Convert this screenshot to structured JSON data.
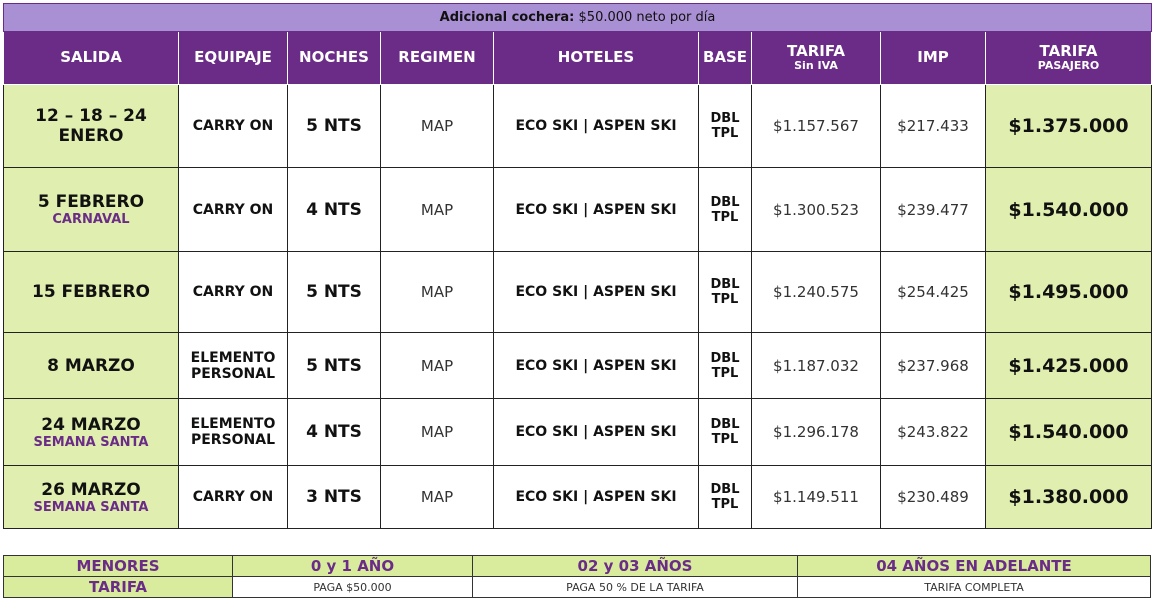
{
  "banner": {
    "label": "Adicional cochera:",
    "text": "$50.000 neto por día"
  },
  "table": {
    "headers": [
      {
        "title": "SALIDA"
      },
      {
        "title": "EQUIPAJE"
      },
      {
        "title": "NOCHES"
      },
      {
        "title": "REGIMEN"
      },
      {
        "title": "HOTELES"
      },
      {
        "title": "BASE"
      },
      {
        "title": "TARIFA",
        "subtitle": "Sin IVA"
      },
      {
        "title": "IMP"
      },
      {
        "title": "TARIFA",
        "subtitle": "PASAJERO"
      }
    ],
    "rows": [
      {
        "salida": [
          "12 – 18 – 24",
          "ENERO"
        ],
        "equipaje": [
          "CARRY ON"
        ],
        "noches": "5 NTS",
        "regimen": "MAP",
        "hoteles": "ECO SKI | ASPEN SKI",
        "base": [
          "DBL",
          "TPL"
        ],
        "tarifa": "$1.157.567",
        "imp": "$217.433",
        "pasajero": "$1.375.000"
      },
      {
        "salida": [
          "5 FEBRERO"
        ],
        "nota": "CARNAVAL",
        "equipaje": [
          "CARRY ON"
        ],
        "noches": "4 NTS",
        "regimen": "MAP",
        "hoteles": "ECO SKI | ASPEN SKI",
        "base": [
          "DBL",
          "TPL"
        ],
        "tarifa": "$1.300.523",
        "imp": "$239.477",
        "pasajero": "$1.540.000"
      },
      {
        "salida": [
          "15 FEBRERO"
        ],
        "equipaje": [
          "CARRY ON"
        ],
        "noches": "5 NTS",
        "regimen": "MAP",
        "hoteles": "ECO SKI | ASPEN SKI",
        "base": [
          "DBL",
          "TPL"
        ],
        "tarifa": "$1.240.575",
        "imp": "$254.425",
        "pasajero": "$1.495.000"
      },
      {
        "salida": [
          "8 MARZO"
        ],
        "equipaje": [
          "ELEMENTO",
          "PERSONAL"
        ],
        "noches": "5 NTS",
        "regimen": "MAP",
        "hoteles": "ECO SKI | ASPEN SKI",
        "base": [
          "DBL",
          "TPL"
        ],
        "tarifa": "$1.187.032",
        "imp": "$237.968",
        "pasajero": "$1.425.000"
      },
      {
        "salida": [
          "24 MARZO"
        ],
        "nota": "SEMANA SANTA",
        "equipaje": [
          "ELEMENTO",
          "PERSONAL"
        ],
        "noches": "4 NTS",
        "regimen": "MAP",
        "hoteles": "ECO SKI | ASPEN SKI",
        "base": [
          "DBL",
          "TPL"
        ],
        "tarifa": "$1.296.178",
        "imp": "$243.822",
        "pasajero": "$1.540.000"
      },
      {
        "salida": [
          "26 MARZO"
        ],
        "nota": "SEMANA SANTA",
        "equipaje": [
          "CARRY ON"
        ],
        "noches": "3 NTS",
        "regimen": "MAP",
        "hoteles": "ECO SKI | ASPEN SKI",
        "base": [
          "DBL",
          "TPL"
        ],
        "tarifa": "$1.149.511",
        "imp": "$230.489",
        "pasajero": "$1.380.000"
      }
    ]
  },
  "menores": {
    "rows": [
      [
        "MENORES",
        "0 y 1 AÑO",
        "02 y 03 AÑOS",
        "04 AÑOS EN ADELANTE"
      ],
      [
        "TARIFA",
        "PAGA $50.000",
        "PAGA 50 % DE LA TARIFA",
        "TARIFA COMPLETA"
      ]
    ]
  }
}
